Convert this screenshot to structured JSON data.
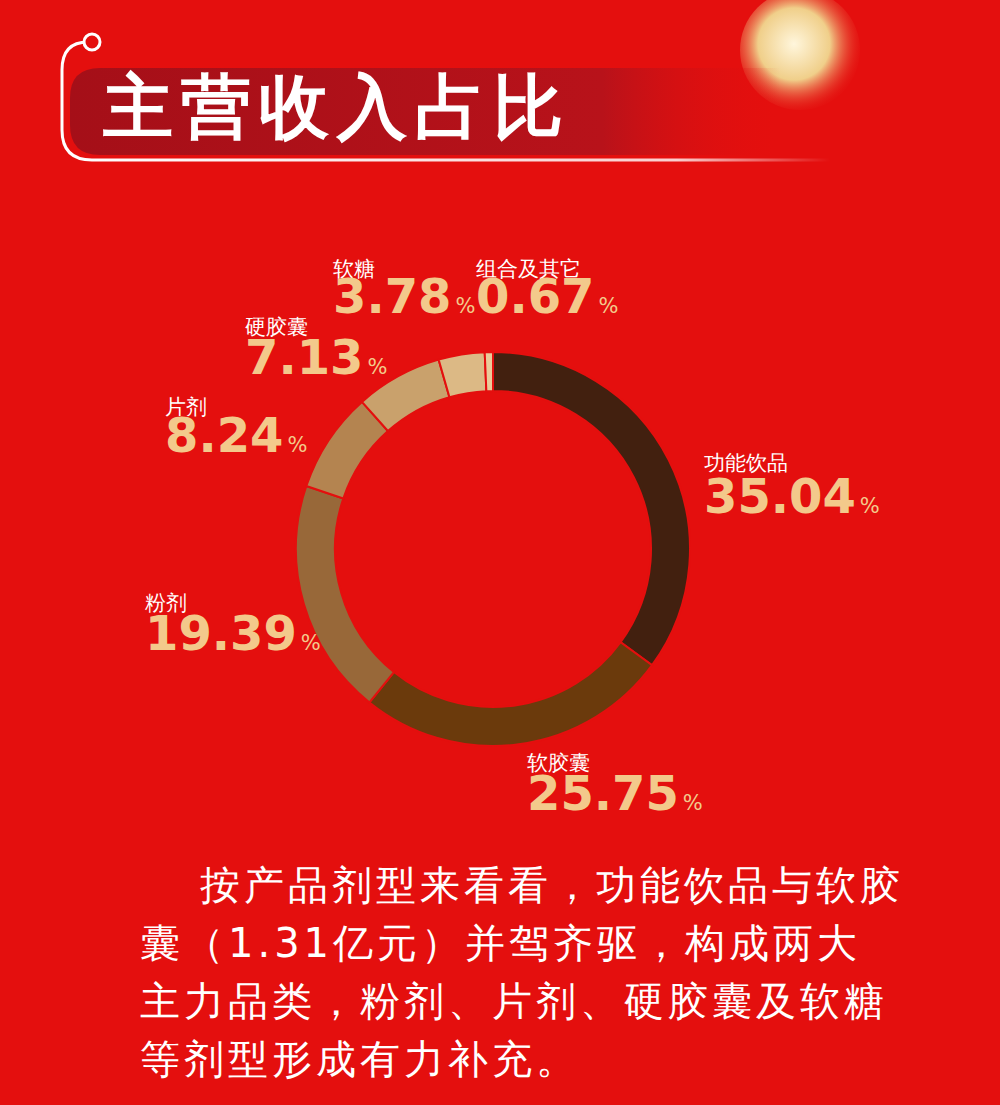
{
  "chart_data": {
    "type": "pie",
    "title": "主营收入占比",
    "categories": [
      "功能饮品",
      "软胶囊",
      "粉剂",
      "片剂",
      "硬胶囊",
      "软糖",
      "组合及其它"
    ],
    "values": [
      35.04,
      25.75,
      19.39,
      8.24,
      7.13,
      3.78,
      0.67
    ],
    "value_labels": [
      "35.04%",
      "25.75%",
      "19.39%",
      "8.24%",
      "7.13%",
      "3.78%",
      "0.67%"
    ],
    "colors": [
      "#42200f",
      "#6b3a0c",
      "#986839",
      "#b48450",
      "#c9a16c",
      "#dcb985",
      "#e9cb9a"
    ],
    "data_labels": true,
    "annotations": [
      "按产品剂型来看看，功能饮品与软胶囊（1.31亿元）并驾齐驱，构成两大主力品类，粉剂、片剂、硬胶囊及软糖等剂型形成有力补充。"
    ]
  }
}
